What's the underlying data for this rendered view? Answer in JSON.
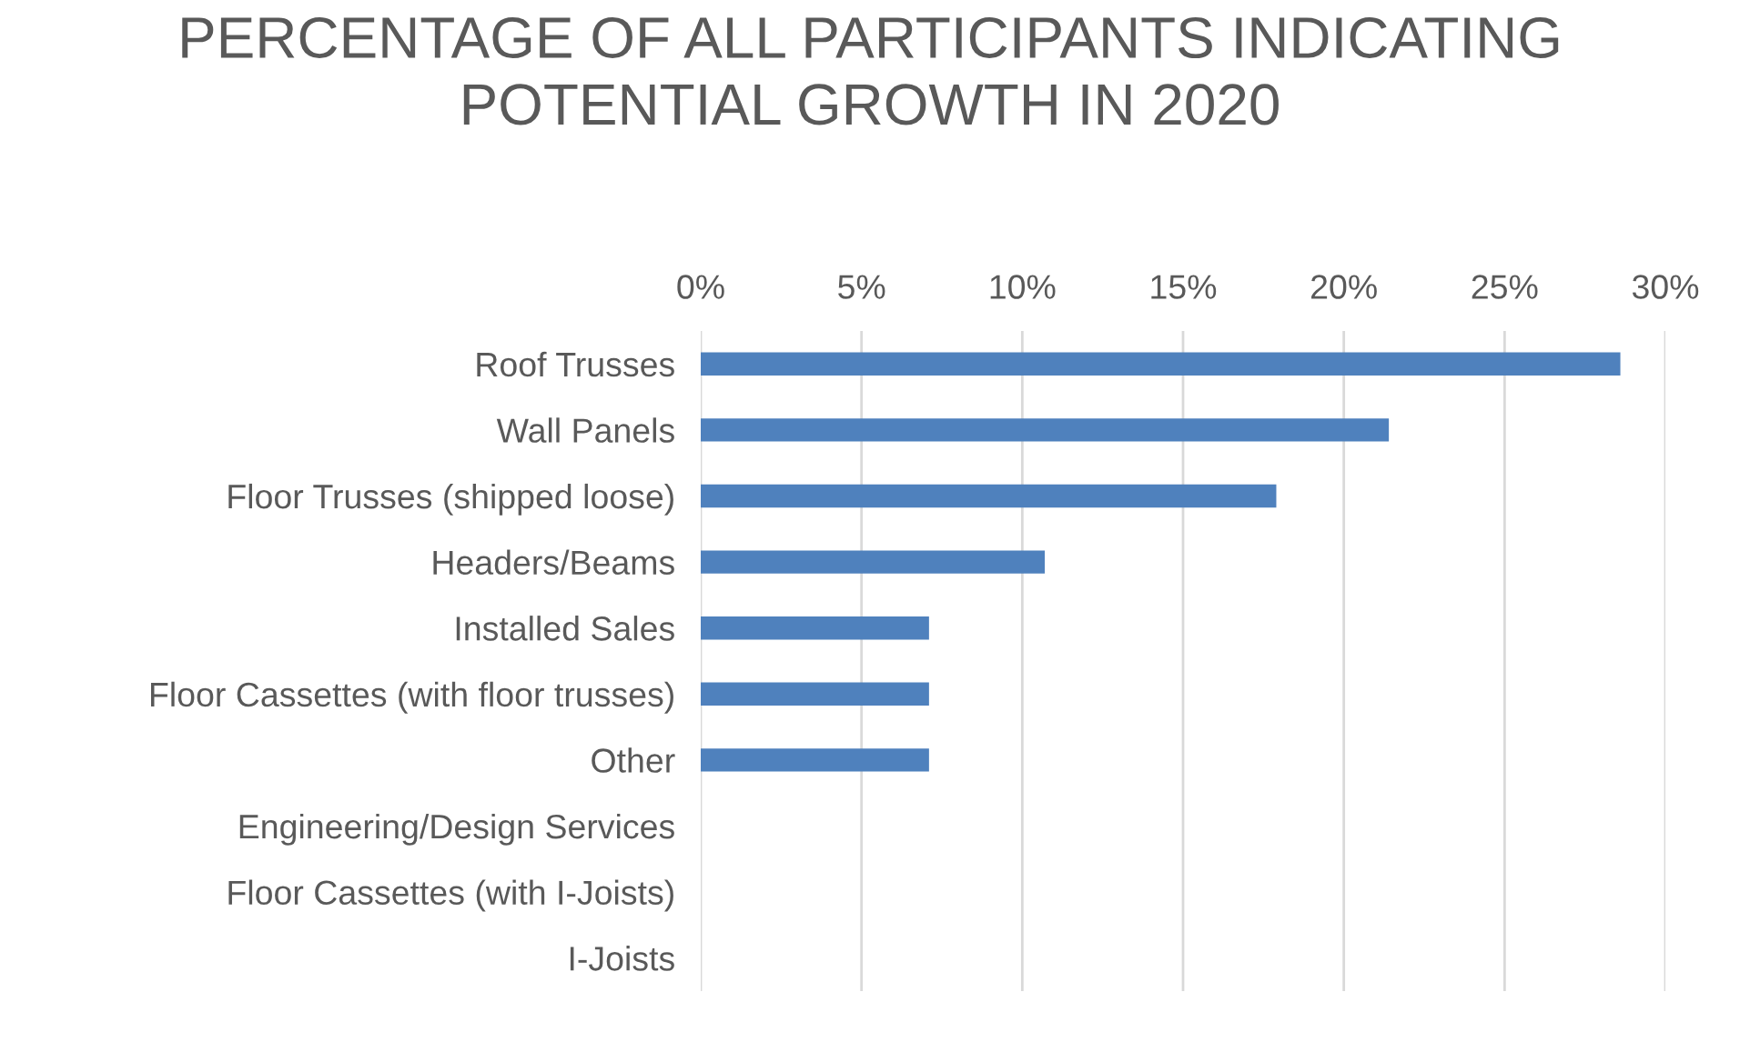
{
  "chart_data": {
    "type": "bar",
    "orientation": "horizontal",
    "title": "PERCENTAGE OF ALL PARTICIPANTS INDICATING\nPOTENTIAL GROWTH IN 2020",
    "categories": [
      "Roof Trusses",
      "Wall Panels",
      "Floor Trusses (shipped loose)",
      "Headers/Beams",
      "Installed Sales",
      "Floor Cassettes (with floor trusses)",
      "Other",
      "Engineering/Design Services",
      "Floor Cassettes (with I-Joists)",
      "I-Joists"
    ],
    "values": [
      28.6,
      21.4,
      17.9,
      10.7,
      7.1,
      7.1,
      7.1,
      0,
      0,
      0
    ],
    "color": "#4f81bd",
    "xlim": [
      0,
      30
    ],
    "xticks": [
      {
        "value": 0,
        "label": "0%"
      },
      {
        "value": 5,
        "label": "5%"
      },
      {
        "value": 10,
        "label": "10%"
      },
      {
        "value": 15,
        "label": "15%"
      },
      {
        "value": 20,
        "label": "20%"
      },
      {
        "value": 25,
        "label": "25%"
      },
      {
        "value": 30,
        "label": "30%"
      }
    ],
    "grid": "x",
    "legend": false
  }
}
